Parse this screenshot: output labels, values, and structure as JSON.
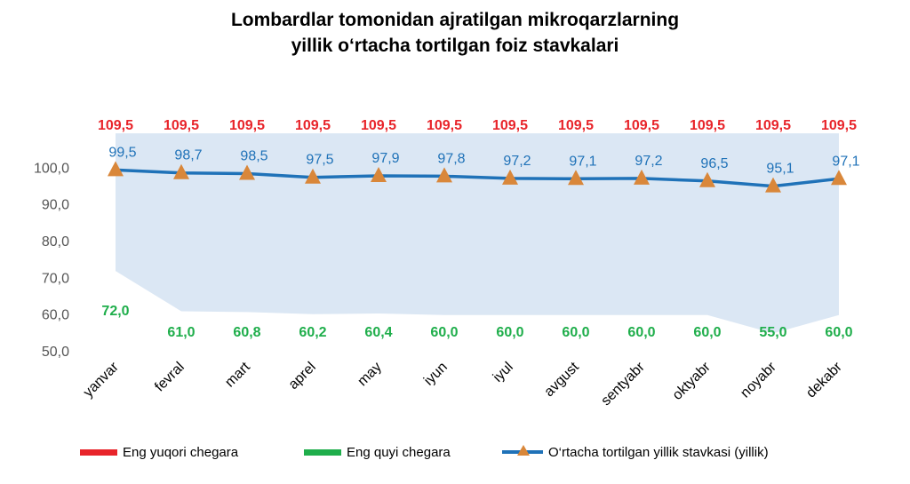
{
  "title_line1": "Lombardlar tomonidan ajratilgan mikroqarzlarning",
  "title_line2": "yillik o‘rtacha tortilgan foiz stavkalari",
  "colors": {
    "upper": "#e8242a",
    "lower": "#1fae4b",
    "avg_line": "#1f72b8",
    "avg_marker": "#d9873a",
    "band": "#dbe7f4",
    "axis_text": "#555555"
  },
  "legend": {
    "upper": "Eng yuqori chegara",
    "lower": "Eng quyi chegara",
    "avg": "O‘rtacha tortilgan yillik stavkasi (yillik)"
  },
  "chart_data": {
    "type": "area",
    "title": "Lombardlar tomonidan ajratilgan mikroqarzlarning yillik o‘rtacha tortilgan foiz stavkalari",
    "categories": [
      "yanvar",
      "fevral",
      "mart",
      "aprel",
      "may",
      "iyun",
      "iyul",
      "avgust",
      "sentyabr",
      "oktyabr",
      "noyabr",
      "dekabr"
    ],
    "series": [
      {
        "name": "Eng yuqori chegara",
        "values": [
          109.5,
          109.5,
          109.5,
          109.5,
          109.5,
          109.5,
          109.5,
          109.5,
          109.5,
          109.5,
          109.5,
          109.5
        ],
        "labels": [
          "109,5",
          "109,5",
          "109,5",
          "109,5",
          "109,5",
          "109,5",
          "109,5",
          "109,5",
          "109,5",
          "109,5",
          "109,5",
          "109,5"
        ]
      },
      {
        "name": "Eng quyi chegara",
        "values": [
          72.0,
          61.0,
          60.8,
          60.2,
          60.4,
          60.0,
          60.0,
          60.0,
          60.0,
          60.0,
          55.0,
          60.0
        ],
        "labels": [
          "72,0",
          "61,0",
          "60,8",
          "60,2",
          "60,4",
          "60,0",
          "60,0",
          "60,0",
          "60,0",
          "60,0",
          "55,0",
          "60,0"
        ]
      },
      {
        "name": "O‘rtacha tortilgan yillik stavkasi (yillik)",
        "values": [
          99.5,
          98.7,
          98.5,
          97.5,
          97.9,
          97.8,
          97.2,
          97.1,
          97.2,
          96.5,
          95.1,
          97.1
        ],
        "labels": [
          "99,5",
          "98,7",
          "98,5",
          "97,5",
          "97,9",
          "97,8",
          "97,2",
          "97,1",
          "97,2",
          "96,5",
          "95,1",
          "97,1"
        ]
      }
    ],
    "yticks": [
      50,
      60,
      70,
      80,
      90,
      100
    ],
    "ytick_labels": [
      "50,0",
      "60,0",
      "70,0",
      "80,0",
      "90,0",
      "100,0"
    ],
    "ylim": [
      50,
      110
    ],
    "xlabel": "",
    "ylabel": "",
    "grid": false,
    "legend_position": "bottom"
  }
}
